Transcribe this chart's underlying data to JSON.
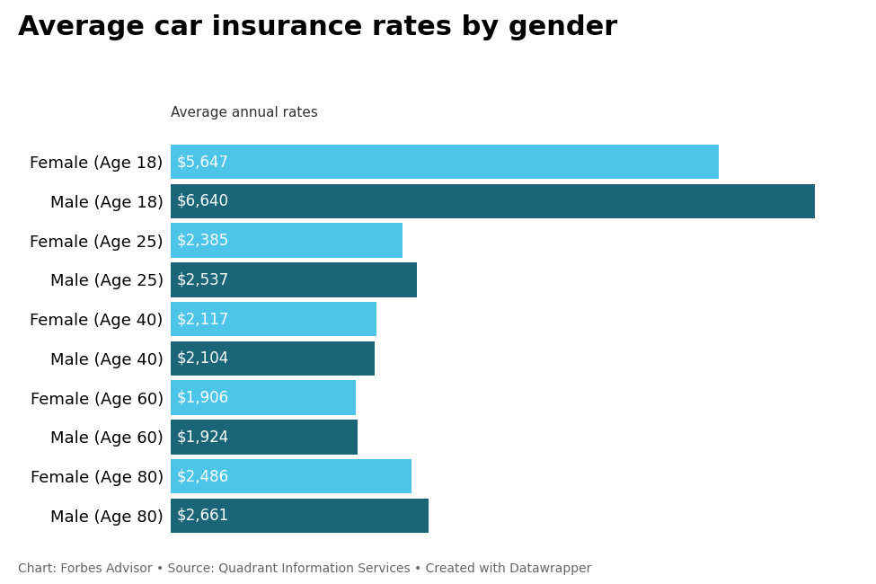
{
  "title": "Average car insurance rates by gender",
  "subtitle": "Average annual rates",
  "footer": "Chart: Forbes Advisor • Source: Quadrant Information Services • Created with Datawrapper",
  "categories": [
    "Female (Age 18)",
    "Male (Age 18)",
    "Female (Age 25)",
    "Male (Age 25)",
    "Female (Age 40)",
    "Male (Age 40)",
    "Female (Age 60)",
    "Male (Age 60)",
    "Female (Age 80)",
    "Male (Age 80)"
  ],
  "values": [
    5647,
    6640,
    2385,
    2537,
    2117,
    2104,
    1906,
    1924,
    2486,
    2661
  ],
  "labels": [
    "$5,647",
    "$6,640",
    "$2,385",
    "$2,537",
    "$2,117",
    "$2,104",
    "$1,906",
    "$1,924",
    "$2,486",
    "$2,661"
  ],
  "colors": [
    "#4dc5e8",
    "#1a6678",
    "#4dc5e8",
    "#1a6678",
    "#4dc5e8",
    "#1a6678",
    "#4dc5e8",
    "#1a6678",
    "#4dc5e8",
    "#1a6678"
  ],
  "xlim": [
    0,
    7000
  ],
  "bar_height": 0.88,
  "background_color": "#ffffff",
  "title_fontsize": 22,
  "subtitle_fontsize": 11,
  "ytick_fontsize": 13,
  "footer_fontsize": 10,
  "value_fontsize": 12
}
